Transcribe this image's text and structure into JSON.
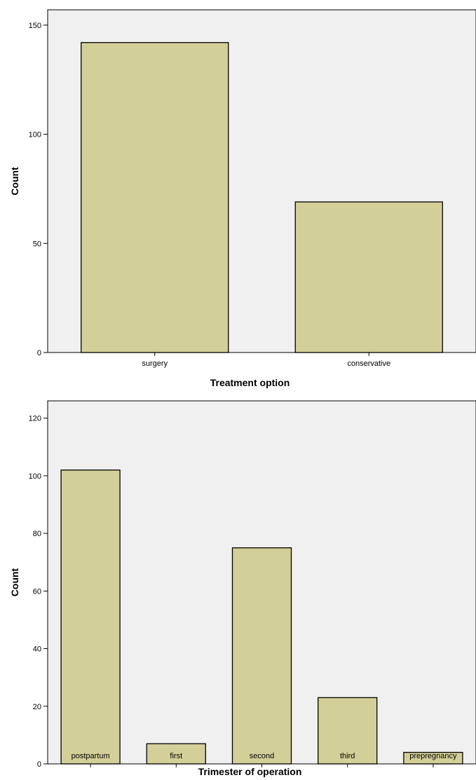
{
  "chart_data": [
    {
      "type": "bar",
      "categories": [
        "surgery",
        "conservative"
      ],
      "values": [
        142,
        69
      ],
      "title": "",
      "xlabel": "Treatment option",
      "ylabel": "Count",
      "ylim": [
        0,
        157
      ],
      "yticks": [
        0,
        50,
        100,
        150
      ],
      "grid": false,
      "bar_color": "#d3cf98",
      "plot_background": "#f0f0f0"
    },
    {
      "type": "bar",
      "categories": [
        "postpartum",
        "first",
        "second",
        "third",
        "prepregnancy"
      ],
      "values": [
        102,
        7,
        75,
        23,
        4
      ],
      "title": "",
      "xlabel": "Trimester of operation",
      "ylabel": "Count",
      "ylim": [
        0,
        126
      ],
      "yticks": [
        0,
        20,
        40,
        60,
        80,
        100,
        120
      ],
      "grid": false,
      "bar_color": "#d3cf98",
      "plot_background": "#f0f0f0"
    }
  ]
}
